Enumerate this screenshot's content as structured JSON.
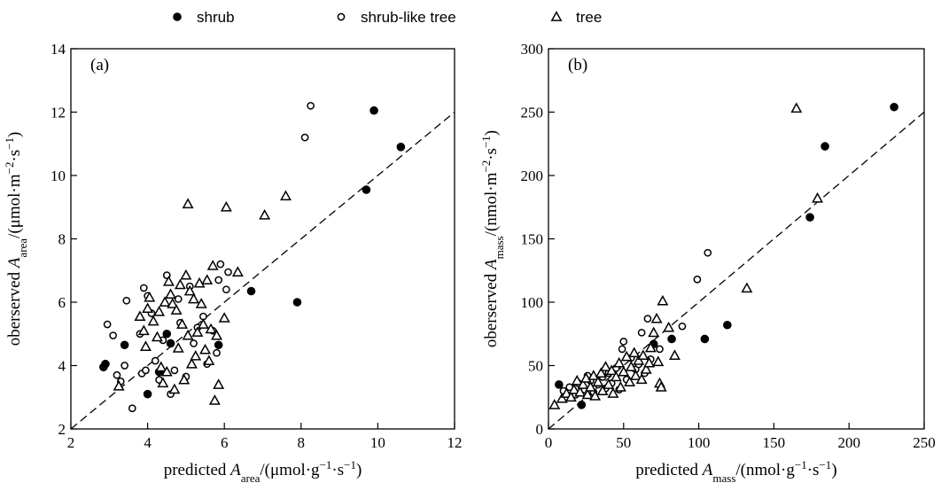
{
  "legend": [
    {
      "label": "shrub",
      "marker": "filled-circle"
    },
    {
      "label": "shrub-like tree",
      "marker": "open-circle"
    },
    {
      "label": "tree",
      "marker": "open-triangle"
    }
  ],
  "chart_data": [
    {
      "type": "scatter",
      "panel_label": "(a)",
      "xlabel": {
        "pre": "predicted ",
        "var": "A",
        "sub": "area",
        "post": "/(μmol·g",
        "sup": "−1",
        "post2": "·s",
        "sup2": "−1",
        "post3": ")"
      },
      "ylabel": {
        "pre": "oberserved ",
        "var": "A",
        "sub": "area",
        "post": "/(μmol·m",
        "sup": "−2",
        "post2": "·s",
        "sup2": "−1",
        "post3": ")"
      },
      "xlim": [
        2,
        12
      ],
      "ylim": [
        2,
        14
      ],
      "xticks": [
        2,
        4,
        6,
        8,
        10,
        12
      ],
      "yticks": [
        2,
        4,
        6,
        8,
        10,
        12,
        14
      ],
      "reference_line": "1:1 dashed",
      "series": [
        {
          "name": "shrub",
          "marker": "filled-circle",
          "points": [
            [
              2.85,
              3.95
            ],
            [
              2.9,
              4.05
            ],
            [
              3.4,
              4.65
            ],
            [
              4.0,
              3.1
            ],
            [
              4.3,
              3.8
            ],
            [
              4.5,
              5.0
            ],
            [
              4.6,
              4.7
            ],
            [
              5.85,
              4.65
            ],
            [
              6.7,
              6.35
            ],
            [
              7.9,
              6.0
            ],
            [
              9.7,
              9.55
            ],
            [
              9.9,
              12.05
            ],
            [
              10.6,
              10.9
            ]
          ]
        },
        {
          "name": "shrub-like tree",
          "marker": "open-circle",
          "points": [
            [
              2.95,
              5.3
            ],
            [
              3.1,
              4.95
            ],
            [
              3.2,
              3.7
            ],
            [
              3.3,
              3.5
            ],
            [
              3.4,
              4.0
            ],
            [
              3.45,
              6.05
            ],
            [
              3.6,
              2.65
            ],
            [
              3.8,
              5.0
            ],
            [
              3.85,
              3.75
            ],
            [
              3.9,
              6.45
            ],
            [
              3.95,
              3.85
            ],
            [
              4.0,
              6.2
            ],
            [
              4.1,
              5.65
            ],
            [
              4.2,
              4.15
            ],
            [
              4.3,
              3.55
            ],
            [
              4.4,
              4.8
            ],
            [
              4.5,
              6.85
            ],
            [
              4.6,
              3.1
            ],
            [
              4.7,
              3.85
            ],
            [
              4.8,
              6.1
            ],
            [
              4.85,
              5.35
            ],
            [
              5.0,
              3.65
            ],
            [
              5.1,
              6.5
            ],
            [
              5.2,
              4.7
            ],
            [
              5.3,
              5.2
            ],
            [
              5.45,
              5.55
            ],
            [
              5.55,
              4.05
            ],
            [
              5.7,
              5.1
            ],
            [
              5.8,
              4.4
            ],
            [
              5.85,
              6.7
            ],
            [
              5.9,
              7.2
            ],
            [
              6.05,
              6.4
            ],
            [
              6.1,
              6.95
            ],
            [
              8.1,
              11.2
            ],
            [
              8.25,
              12.2
            ]
          ]
        },
        {
          "name": "tree",
          "marker": "open-triangle",
          "points": [
            [
              3.25,
              3.35
            ],
            [
              3.8,
              5.55
            ],
            [
              3.9,
              5.1
            ],
            [
              3.95,
              4.6
            ],
            [
              4.0,
              5.8
            ],
            [
              4.05,
              6.15
            ],
            [
              4.15,
              5.4
            ],
            [
              4.25,
              4.9
            ],
            [
              4.3,
              5.7
            ],
            [
              4.35,
              3.95
            ],
            [
              4.4,
              3.45
            ],
            [
              4.45,
              6.0
            ],
            [
              4.5,
              3.8
            ],
            [
              4.55,
              6.65
            ],
            [
              4.6,
              6.25
            ],
            [
              4.65,
              5.95
            ],
            [
              4.7,
              3.25
            ],
            [
              4.75,
              5.75
            ],
            [
              4.8,
              4.55
            ],
            [
              4.85,
              6.55
            ],
            [
              4.9,
              5.3
            ],
            [
              4.95,
              3.55
            ],
            [
              5.0,
              6.85
            ],
            [
              5.05,
              4.95
            ],
            [
              5.1,
              6.35
            ],
            [
              5.15,
              4.05
            ],
            [
              5.2,
              6.1
            ],
            [
              5.25,
              4.3
            ],
            [
              5.3,
              5.05
            ],
            [
              5.35,
              6.6
            ],
            [
              5.4,
              5.95
            ],
            [
              5.45,
              5.3
            ],
            [
              5.5,
              4.5
            ],
            [
              5.55,
              6.7
            ],
            [
              5.6,
              4.15
            ],
            [
              5.65,
              5.15
            ],
            [
              5.7,
              7.15
            ],
            [
              5.75,
              2.9
            ],
            [
              5.8,
              4.95
            ],
            [
              5.85,
              3.4
            ],
            [
              6.0,
              5.5
            ],
            [
              6.35,
              6.95
            ],
            [
              5.05,
              9.1
            ],
            [
              6.05,
              9.0
            ],
            [
              7.05,
              8.75
            ],
            [
              7.6,
              9.35
            ]
          ]
        }
      ]
    },
    {
      "type": "scatter",
      "panel_label": "(b)",
      "xlabel": {
        "pre": "predicted ",
        "var": "A",
        "sub": "mass",
        "post": "/(nmol·g",
        "sup": "−1",
        "post2": "·s",
        "sup2": "−1",
        "post3": ")"
      },
      "ylabel": {
        "pre": "oberserved ",
        "var": "A",
        "sub": "mass",
        "post": "/(nmol·m",
        "sup": "−2",
        "post2": "·s",
        "sup2": "−1",
        "post3": ")"
      },
      "xlim": [
        0,
        250
      ],
      "ylim": [
        0,
        300
      ],
      "xticks": [
        0,
        50,
        100,
        150,
        200,
        250
      ],
      "yticks": [
        0,
        50,
        100,
        150,
        200,
        250,
        300
      ],
      "reference_line": "1:1 dashed",
      "series": [
        {
          "name": "shrub",
          "marker": "filled-circle",
          "points": [
            [
              7,
              35
            ],
            [
              22,
              19
            ],
            [
              70,
              67
            ],
            [
              82,
              71
            ],
            [
              104,
              71
            ],
            [
              119,
              82
            ],
            [
              174,
              167
            ],
            [
              184,
              223
            ],
            [
              230,
              254
            ]
          ]
        },
        {
          "name": "shrub-like tree",
          "marker": "open-circle",
          "points": [
            [
              10,
              30
            ],
            [
              14,
              33
            ],
            [
              18,
              27
            ],
            [
              20,
              36
            ],
            [
              24,
              31
            ],
            [
              26,
              42
            ],
            [
              28,
              38
            ],
            [
              30,
              29
            ],
            [
              33,
              35
            ],
            [
              36,
              41
            ],
            [
              38,
              32
            ],
            [
              40,
              44
            ],
            [
              42,
              36
            ],
            [
              45,
              48
            ],
            [
              47,
              31
            ],
            [
              49,
              63
            ],
            [
              50,
              69
            ],
            [
              52,
              39
            ],
            [
              55,
              56
            ],
            [
              58,
              47
            ],
            [
              60,
              51
            ],
            [
              62,
              76
            ],
            [
              64,
              44
            ],
            [
              66,
              87
            ],
            [
              68,
              55
            ],
            [
              74,
              63
            ],
            [
              89,
              81
            ],
            [
              99,
              118
            ],
            [
              106,
              139
            ]
          ]
        },
        {
          "name": "tree",
          "marker": "open-triangle",
          "points": [
            [
              4,
              19
            ],
            [
              9,
              24
            ],
            [
              12,
              28
            ],
            [
              15,
              25
            ],
            [
              17,
              31
            ],
            [
              19,
              38
            ],
            [
              21,
              29
            ],
            [
              23,
              35
            ],
            [
              25,
              40
            ],
            [
              26,
              27
            ],
            [
              28,
              33
            ],
            [
              30,
              42
            ],
            [
              31,
              26
            ],
            [
              33,
              37
            ],
            [
              35,
              44
            ],
            [
              36,
              30
            ],
            [
              38,
              49
            ],
            [
              40,
              35
            ],
            [
              42,
              46
            ],
            [
              43,
              28
            ],
            [
              45,
              41
            ],
            [
              47,
              52
            ],
            [
              48,
              33
            ],
            [
              50,
              45
            ],
            [
              52,
              57
            ],
            [
              54,
              37
            ],
            [
              55,
              49
            ],
            [
              57,
              60
            ],
            [
              58,
              42
            ],
            [
              60,
              54
            ],
            [
              62,
              39
            ],
            [
              63,
              58
            ],
            [
              65,
              47
            ],
            [
              67,
              52
            ],
            [
              68,
              64
            ],
            [
              70,
              76
            ],
            [
              72,
              87
            ],
            [
              73,
              53
            ],
            [
              74,
              36
            ],
            [
              75,
              33
            ],
            [
              76,
              101
            ],
            [
              80,
              80
            ],
            [
              84,
              58
            ],
            [
              132,
              111
            ],
            [
              165,
              253
            ],
            [
              179,
              182
            ]
          ]
        }
      ]
    }
  ]
}
